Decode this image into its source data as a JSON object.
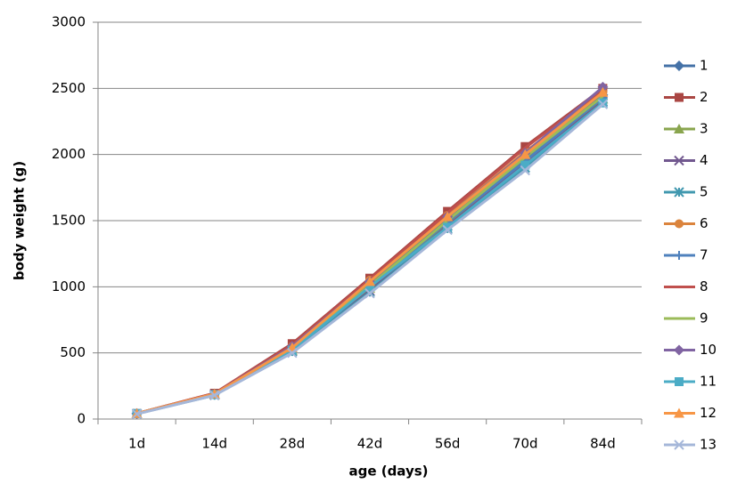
{
  "chart_data": {
    "type": "line",
    "x_label": "age (days)",
    "y_label": "body weight (g)",
    "categories": [
      "1d",
      "14d",
      "28d",
      "42d",
      "56d",
      "70d",
      "84d"
    ],
    "ylim": [
      0,
      3000
    ],
    "yticks": [
      0,
      500,
      1000,
      1500,
      2000,
      2500,
      3000
    ],
    "grid": true,
    "legend": "right",
    "series": [
      {
        "name": "1",
        "color": "#4572a7",
        "marker": "diamond",
        "values": [
          40,
          190,
          540,
          1020,
          1510,
          1990,
          2450
        ]
      },
      {
        "name": "2",
        "color": "#aa4643",
        "marker": "square",
        "values": [
          42,
          195,
          570,
          1065,
          1570,
          2060,
          2500
        ]
      },
      {
        "name": "3",
        "color": "#89a54e",
        "marker": "triangle",
        "values": [
          40,
          185,
          520,
          990,
          1480,
          1960,
          2420
        ]
      },
      {
        "name": "4",
        "color": "#71588f",
        "marker": "x",
        "values": [
          40,
          185,
          510,
          970,
          1460,
          1930,
          2400
        ]
      },
      {
        "name": "5",
        "color": "#4198af",
        "marker": "asterisk",
        "values": [
          40,
          180,
          510,
          960,
          1440,
          1900,
          2390
        ]
      },
      {
        "name": "6",
        "color": "#db843d",
        "marker": "circle",
        "values": [
          42,
          192,
          550,
          1050,
          1540,
          2020,
          2470
        ]
      },
      {
        "name": "7",
        "color": "#4f81bd",
        "marker": "plus",
        "values": [
          40,
          188,
          530,
          1000,
          1490,
          1950,
          2430
        ]
      },
      {
        "name": "8",
        "color": "#c0504d",
        "marker": "none",
        "values": [
          42,
          195,
          560,
          1055,
          1560,
          2050,
          2490
        ]
      },
      {
        "name": "9",
        "color": "#9bbb59",
        "marker": "none",
        "values": [
          40,
          188,
          530,
          1010,
          1500,
          1980,
          2440
        ]
      },
      {
        "name": "10",
        "color": "#8064a2",
        "marker": "diamond",
        "values": [
          42,
          190,
          550,
          1040,
          1530,
          2010,
          2510
        ]
      },
      {
        "name": "11",
        "color": "#4bacc6",
        "marker": "square",
        "values": [
          42,
          185,
          520,
          1000,
          1450,
          1920,
          2390
        ]
      },
      {
        "name": "12",
        "color": "#f79646",
        "marker": "triangle",
        "values": [
          42,
          190,
          540,
          1040,
          1530,
          2000,
          2470
        ]
      },
      {
        "name": "13",
        "color": "#a5b7d9",
        "marker": "x",
        "values": [
          38,
          180,
          500,
          950,
          1430,
          1880,
          2380
        ]
      }
    ]
  }
}
